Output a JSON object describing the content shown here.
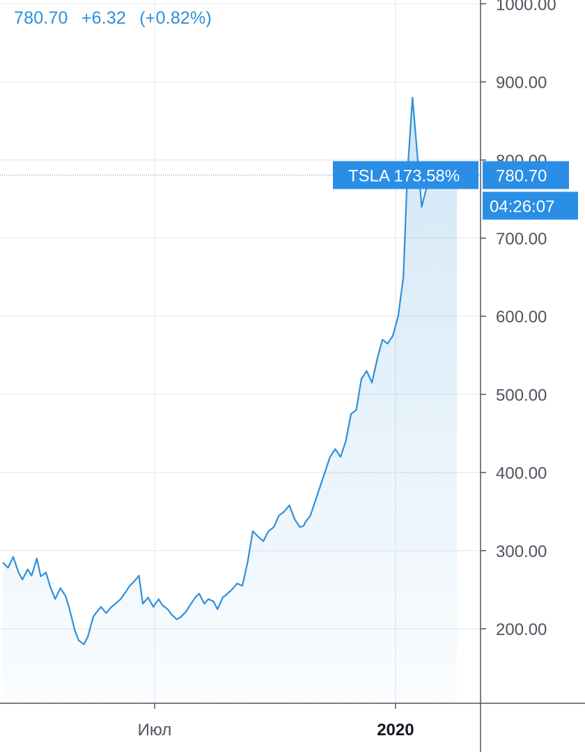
{
  "header": {
    "last_price": "780.70",
    "change": "+6.32",
    "change_pct": "(+0.82%)"
  },
  "colors": {
    "line": "#2f8fd8",
    "tag_bg": "#2a8ee6",
    "grid": "#e9eef2",
    "axis": "#50535e"
  },
  "chart_data": {
    "type": "area",
    "symbol": "TSLA",
    "compare_label": "TSLA 173.58%",
    "last_value": "780.70",
    "last_time": "04:26:07",
    "x_ticks": [
      {
        "label": "Июл",
        "at": "2019-07-01",
        "major": false
      },
      {
        "label": "2020",
        "at": "2020-01-01",
        "major": true
      }
    ],
    "y_ticks": [
      "200.00",
      "300.00",
      "400.00",
      "500.00",
      "600.00",
      "700.00",
      "800.00",
      "900.00",
      "1000.00"
    ],
    "ylim": [
      100,
      1000
    ],
    "xlim": [
      "2019-03-07",
      "2020-02-19"
    ],
    "grid": true,
    "series": [
      {
        "x": [
          "2019-03-07",
          "2019-03-11",
          "2019-03-15",
          "2019-03-19",
          "2019-03-22",
          "2019-03-26",
          "2019-03-29",
          "2019-04-02",
          "2019-04-05",
          "2019-04-09",
          "2019-04-12",
          "2019-04-16",
          "2019-04-20",
          "2019-04-24",
          "2019-04-27",
          "2019-05-01",
          "2019-05-04",
          "2019-05-08",
          "2019-05-11",
          "2019-05-15",
          "2019-05-18",
          "2019-05-21",
          "2019-05-25",
          "2019-05-29",
          "2019-06-01",
          "2019-06-05",
          "2019-06-08",
          "2019-06-12",
          "2019-06-15",
          "2019-06-19",
          "2019-06-22",
          "2019-06-26",
          "2019-06-30",
          "2019-07-04",
          "2019-07-07",
          "2019-07-11",
          "2019-07-14",
          "2019-07-18",
          "2019-07-21",
          "2019-07-25",
          "2019-07-28",
          "2019-08-01",
          "2019-08-04",
          "2019-08-08",
          "2019-08-11",
          "2019-08-15",
          "2019-08-18",
          "2019-08-22",
          "2019-08-25",
          "2019-08-29",
          "2019-09-02",
          "2019-09-06",
          "2019-09-10",
          "2019-09-14",
          "2019-09-18",
          "2019-09-22",
          "2019-09-26",
          "2019-09-30",
          "2019-10-04",
          "2019-10-08",
          "2019-10-12",
          "2019-10-16",
          "2019-10-20",
          "2019-10-23",
          "2019-10-24",
          "2019-10-28",
          "2019-10-31",
          "2019-11-04",
          "2019-11-08",
          "2019-11-12",
          "2019-11-16",
          "2019-11-20",
          "2019-11-24",
          "2019-11-28",
          "2019-12-02",
          "2019-12-06",
          "2019-12-10",
          "2019-12-14",
          "2019-12-18",
          "2019-12-22",
          "2019-12-26",
          "2019-12-30",
          "2020-01-03",
          "2020-01-07",
          "2020-01-10",
          "2020-01-14",
          "2020-01-17",
          "2020-01-21",
          "2020-01-24",
          "2020-01-28",
          "2020-01-31",
          "2020-02-02",
          "2020-02-04",
          "2020-02-06",
          "2020-02-08",
          "2020-02-10",
          "2020-02-12",
          "2020-02-14",
          "2020-02-17"
        ],
        "y": [
          285,
          278,
          292,
          272,
          263,
          276,
          268,
          290,
          267,
          272,
          255,
          238,
          252,
          242,
          225,
          198,
          185,
          180,
          190,
          215,
          222,
          228,
          220,
          228,
          232,
          238,
          245,
          255,
          260,
          268,
          232,
          240,
          228,
          238,
          230,
          225,
          218,
          212,
          215,
          222,
          230,
          240,
          245,
          232,
          238,
          235,
          225,
          240,
          244,
          250,
          258,
          255,
          285,
          325,
          318,
          312,
          325,
          330,
          345,
          350,
          358,
          340,
          330,
          332,
          336,
          345,
          360,
          380,
          400,
          420,
          430,
          420,
          440,
          475,
          480,
          520,
          530,
          515,
          545,
          570,
          565,
          575,
          600,
          650,
          780,
          880,
          820,
          740,
          760,
          780,
          781,
          780,
          781,
          780,
          781,
          780,
          780,
          780,
          780
        ]
      }
    ]
  }
}
